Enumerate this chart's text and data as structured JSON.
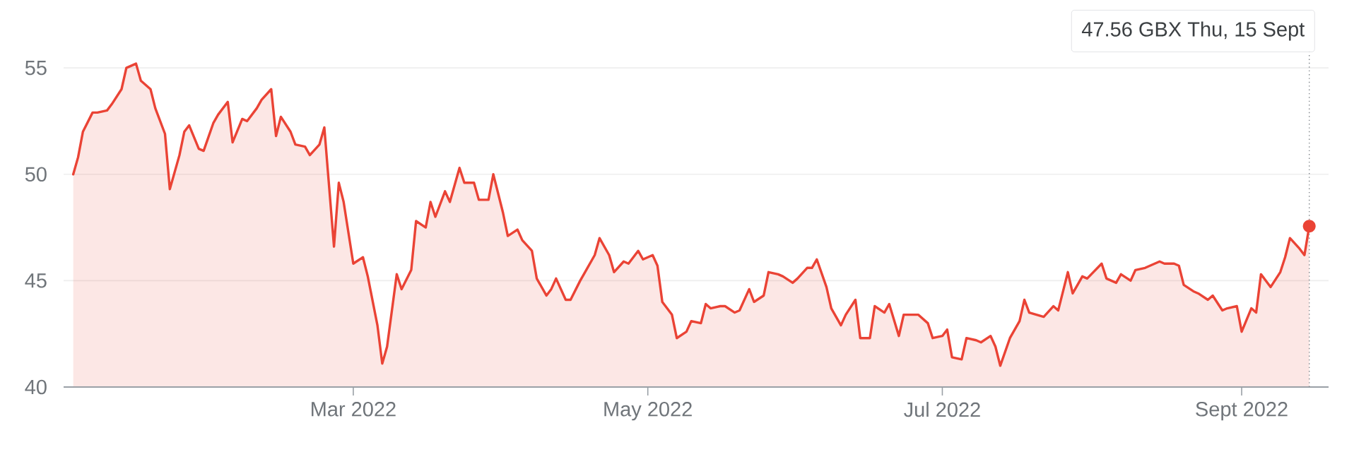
{
  "chart_data": {
    "type": "area",
    "color": "#ea4335",
    "x": [
      "2022-01-02",
      "2022-01-03",
      "2022-01-04",
      "2022-01-06",
      "2022-01-07",
      "2022-01-09",
      "2022-01-10",
      "2022-01-12",
      "2022-01-13",
      "2022-01-15",
      "2022-01-16",
      "2022-01-18",
      "2022-01-19",
      "2022-01-21",
      "2022-01-22",
      "2022-01-24",
      "2022-01-25",
      "2022-01-26",
      "2022-01-28",
      "2022-01-29",
      "2022-01-31",
      "2022-02-01",
      "2022-02-03",
      "2022-02-04",
      "2022-02-06",
      "2022-02-07",
      "2022-02-09",
      "2022-02-10",
      "2022-02-12",
      "2022-02-13",
      "2022-02-14",
      "2022-02-16",
      "2022-02-17",
      "2022-02-19",
      "2022-02-20",
      "2022-02-22",
      "2022-02-23",
      "2022-02-25",
      "2022-02-26",
      "2022-02-27",
      "2022-03-01",
      "2022-03-03",
      "2022-03-04",
      "2022-03-06",
      "2022-03-07",
      "2022-03-08",
      "2022-03-10",
      "2022-03-11",
      "2022-03-13",
      "2022-03-14",
      "2022-03-16",
      "2022-03-17",
      "2022-03-18",
      "2022-03-20",
      "2022-03-21",
      "2022-03-23",
      "2022-03-24",
      "2022-03-26",
      "2022-03-27",
      "2022-03-29",
      "2022-03-30",
      "2022-04-01",
      "2022-04-02",
      "2022-04-04",
      "2022-04-05",
      "2022-04-07",
      "2022-04-08",
      "2022-04-10",
      "2022-04-11",
      "2022-04-12",
      "2022-04-14",
      "2022-04-15",
      "2022-04-17",
      "2022-04-18",
      "2022-04-20",
      "2022-04-21",
      "2022-04-23",
      "2022-04-24",
      "2022-04-26",
      "2022-04-27",
      "2022-04-29",
      "2022-04-30",
      "2022-05-02",
      "2022-05-03",
      "2022-05-04",
      "2022-05-06",
      "2022-05-07",
      "2022-05-09",
      "2022-05-10",
      "2022-05-12",
      "2022-05-13",
      "2022-05-14",
      "2022-05-16",
      "2022-05-17",
      "2022-05-19",
      "2022-05-20",
      "2022-05-22",
      "2022-05-23",
      "2022-05-25",
      "2022-05-26",
      "2022-05-28",
      "2022-05-29",
      "2022-05-31",
      "2022-06-01",
      "2022-06-03",
      "2022-06-04",
      "2022-06-05",
      "2022-06-07",
      "2022-06-08",
      "2022-06-10",
      "2022-06-11",
      "2022-06-13",
      "2022-06-14",
      "2022-06-16",
      "2022-06-17",
      "2022-06-19",
      "2022-06-20",
      "2022-06-22",
      "2022-06-23",
      "2022-06-25",
      "2022-06-26",
      "2022-06-28",
      "2022-06-29",
      "2022-07-01",
      "2022-07-02",
      "2022-07-03",
      "2022-07-05",
      "2022-07-06",
      "2022-07-08",
      "2022-07-09",
      "2022-07-11",
      "2022-07-12",
      "2022-07-13",
      "2022-07-15",
      "2022-07-17",
      "2022-07-18",
      "2022-07-19",
      "2022-07-22",
      "2022-07-24",
      "2022-07-25",
      "2022-07-27",
      "2022-07-28",
      "2022-07-30",
      "2022-07-31",
      "2022-08-03",
      "2022-08-04",
      "2022-08-06",
      "2022-08-07",
      "2022-08-09",
      "2022-08-10",
      "2022-08-12",
      "2022-08-13",
      "2022-08-15",
      "2022-08-16",
      "2022-08-18",
      "2022-08-19",
      "2022-08-20",
      "2022-08-22",
      "2022-08-23",
      "2022-08-25",
      "2022-08-26",
      "2022-08-28",
      "2022-08-29",
      "2022-08-31",
      "2022-09-01",
      "2022-09-03",
      "2022-09-04",
      "2022-09-05",
      "2022-09-07",
      "2022-09-09",
      "2022-09-10",
      "2022-09-11",
      "2022-09-13",
      "2022-09-14",
      "2022-09-15"
    ],
    "values": [
      50.0,
      50.8,
      52.0,
      52.9,
      52.9,
      53.0,
      53.3,
      54.0,
      55.0,
      55.2,
      54.4,
      54.0,
      53.1,
      51.9,
      49.3,
      50.9,
      52.0,
      52.3,
      51.2,
      51.1,
      52.4,
      52.8,
      53.4,
      51.5,
      52.6,
      52.5,
      53.1,
      53.5,
      54.0,
      51.8,
      52.7,
      52.0,
      51.4,
      51.3,
      50.9,
      51.4,
      52.2,
      46.6,
      49.6,
      48.7,
      45.8,
      46.1,
      45.2,
      42.9,
      41.1,
      41.9,
      45.3,
      44.6,
      45.5,
      47.8,
      47.5,
      48.7,
      48.0,
      49.2,
      48.7,
      50.3,
      49.6,
      49.6,
      48.8,
      48.8,
      50.0,
      48.2,
      47.1,
      47.4,
      46.9,
      46.4,
      45.1,
      44.3,
      44.6,
      45.1,
      44.1,
      44.1,
      45.0,
      45.4,
      46.2,
      47.0,
      46.2,
      45.4,
      45.9,
      45.8,
      46.4,
      46.0,
      46.2,
      45.7,
      44.0,
      43.4,
      42.3,
      42.6,
      43.1,
      43.0,
      43.9,
      43.7,
      43.8,
      43.8,
      43.5,
      43.6,
      44.6,
      44.0,
      44.3,
      45.4,
      45.3,
      45.2,
      44.9,
      45.1,
      45.6,
      45.6,
      46.0,
      44.7,
      43.7,
      42.9,
      43.4,
      44.1,
      42.3,
      42.3,
      43.8,
      43.5,
      43.9,
      42.4,
      43.4,
      43.4,
      43.4,
      43.0,
      42.3,
      42.4,
      42.7,
      41.4,
      41.3,
      42.3,
      42.2,
      42.1,
      42.4,
      41.9,
      41.0,
      42.3,
      43.1,
      44.1,
      43.5,
      43.3,
      43.8,
      43.6,
      45.4,
      44.4,
      45.2,
      45.1,
      45.8,
      45.1,
      44.9,
      45.3,
      45.0,
      45.5,
      45.6,
      45.7,
      45.9,
      45.8,
      45.8,
      45.7,
      44.8,
      44.5,
      44.4,
      44.1,
      44.3,
      43.6,
      43.7,
      43.8,
      42.6,
      43.7,
      43.5,
      45.3,
      44.7,
      45.4,
      46.1,
      47.0,
      46.5,
      46.2,
      47.56
    ],
    "xlim": [
      "2021-12-31",
      "2022-09-19"
    ],
    "xticks": [
      {
        "value": "2022-03-01",
        "label": "Mar 2022"
      },
      {
        "value": "2022-05-01",
        "label": "May 2022"
      },
      {
        "value": "2022-07-01",
        "label": "Jul 2022"
      },
      {
        "value": "2022-09-01",
        "label": "Sept 2022"
      }
    ],
    "ylim": [
      40,
      56
    ],
    "yticks": [
      40,
      45,
      50,
      55
    ],
    "grid": "y",
    "ref_lines": [
      {
        "axis": "x",
        "value": "2022-09-15",
        "color": "#80868b",
        "line_style": "dotted"
      }
    ],
    "annotations": [
      "47.56 GBX  Thu, 15 Sept"
    ]
  }
}
